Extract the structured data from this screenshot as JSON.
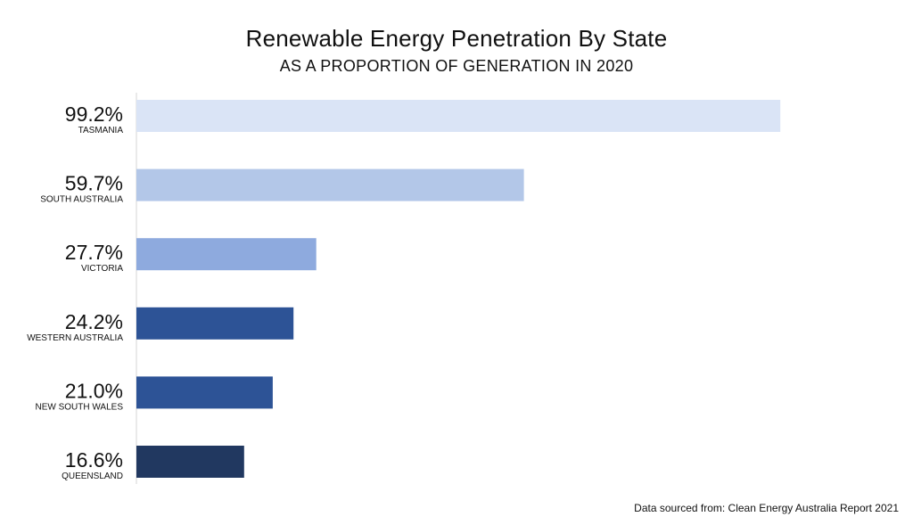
{
  "title": "Renewable Energy Penetration By State",
  "subtitle": "AS A PROPORTION OF GENERATION IN 2020",
  "source": "Data sourced from: Clean Energy Australia Report 2021",
  "chart_data": {
    "type": "bar",
    "orientation": "horizontal",
    "title": "Renewable Energy Penetration By State",
    "subtitle": "AS A PROPORTION OF GENERATION IN 2020",
    "xlabel": "",
    "ylabel": "",
    "xlim": [
      0,
      100
    ],
    "grid": false,
    "legend": "none",
    "categories": [
      "TASMANIA",
      "SOUTH AUSTRALIA",
      "VICTORIA",
      "WESTERN AUSTRALIA",
      "NEW SOUTH WALES",
      "QUEENSLAND"
    ],
    "values": [
      99.2,
      59.7,
      27.7,
      24.2,
      21.0,
      16.6
    ],
    "value_labels": [
      "99.2%",
      "59.7%",
      "27.7%",
      "24.2%",
      "21.0%",
      "16.6%"
    ],
    "colors": [
      "#dae4f6",
      "#b3c7e8",
      "#8eaade",
      "#2d5396",
      "#2d5396",
      "#213860"
    ]
  }
}
